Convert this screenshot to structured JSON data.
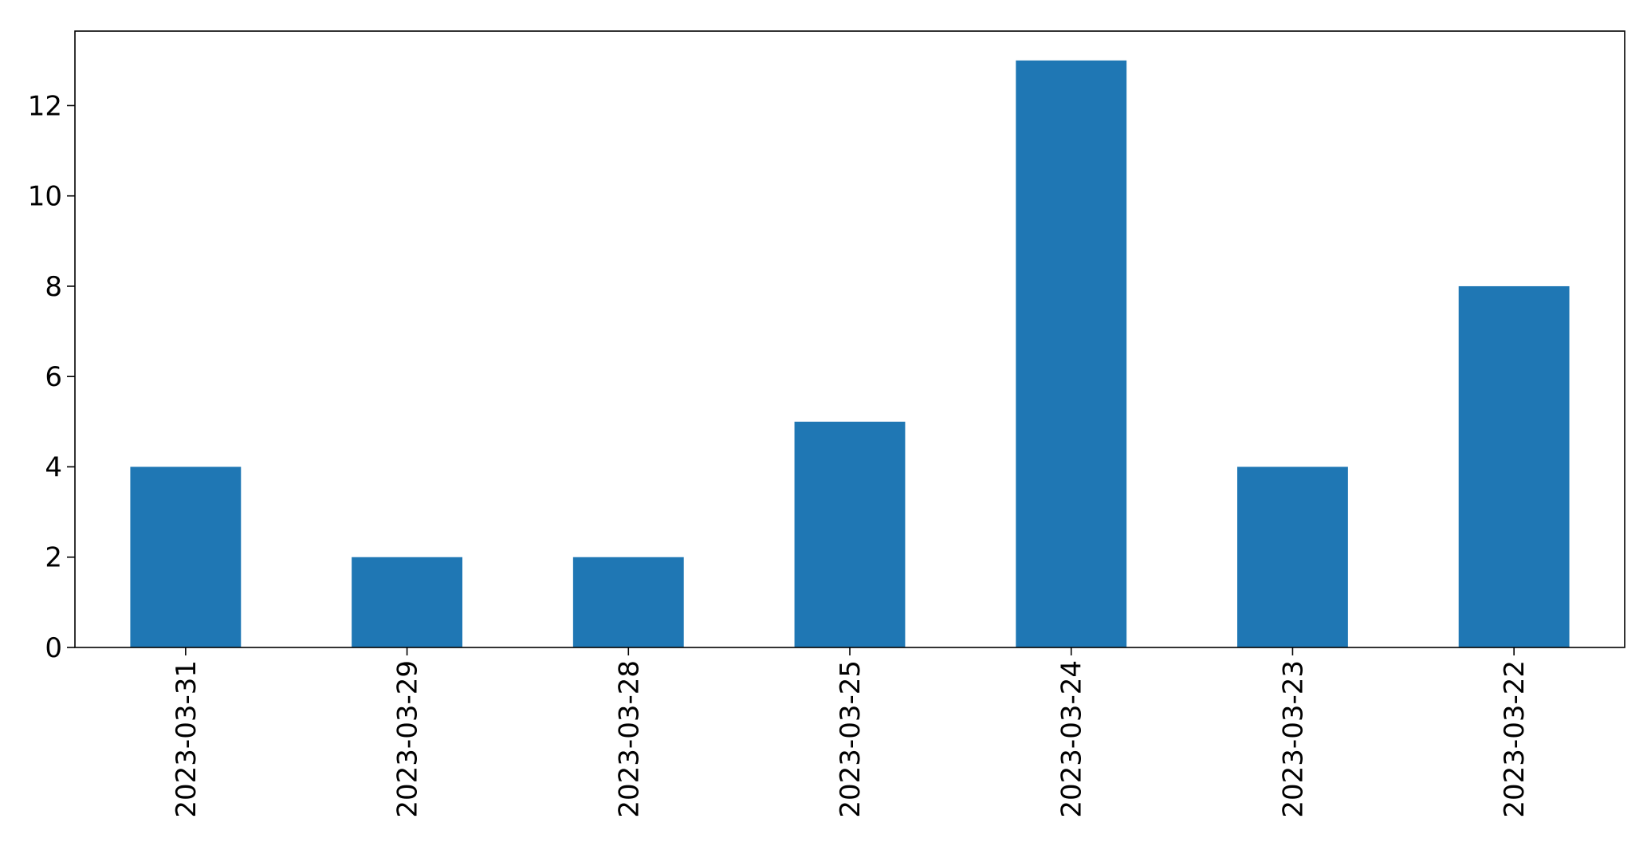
{
  "chart_data": {
    "type": "bar",
    "categories": [
      "2023-03-31",
      "2023-03-29",
      "2023-03-28",
      "2023-03-25",
      "2023-03-24",
      "2023-03-23",
      "2023-03-22"
    ],
    "values": [
      4,
      2,
      2,
      5,
      13,
      4,
      8
    ],
    "ylim": [
      0,
      13.65
    ],
    "yticks": [
      0,
      2,
      4,
      6,
      8,
      10,
      12
    ],
    "bar_color": "#1f77b4",
    "grid": false,
    "legend": "none",
    "xtick_rotation": "vertical"
  }
}
